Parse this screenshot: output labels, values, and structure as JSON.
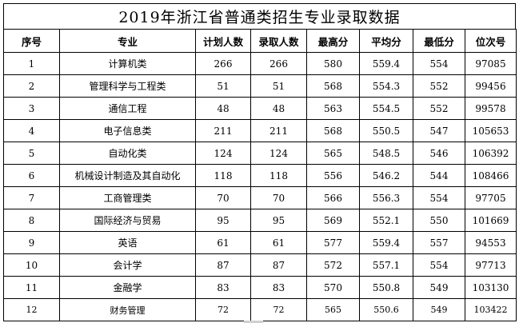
{
  "title": "2019年浙江省普通类招生专业录取数据",
  "columns": [
    "序号",
    "专业",
    "计划人数",
    "录取人数",
    "最高分",
    "平均分",
    "最低分",
    "位次号"
  ],
  "rows": [
    [
      "1",
      "计算机类",
      "266",
      "266",
      "580",
      "559.4",
      "554",
      "97085"
    ],
    [
      "2",
      "管理科学与工程类",
      "51",
      "51",
      "568",
      "554.3",
      "552",
      "99456"
    ],
    [
      "3",
      "通信工程",
      "48",
      "48",
      "563",
      "554.5",
      "552",
      "99578"
    ],
    [
      "4",
      "电子信息类",
      "211",
      "211",
      "568",
      "550.5",
      "547",
      "105653"
    ],
    [
      "5",
      "自动化类",
      "124",
      "124",
      "565",
      "548.5",
      "546",
      "106392"
    ],
    [
      "6",
      "机械设计制造及其自动化",
      "118",
      "118",
      "556",
      "546.2",
      "544",
      "108466"
    ],
    [
      "7",
      "工商管理类",
      "70",
      "70",
      "566",
      "556.3",
      "554",
      "97705"
    ],
    [
      "8",
      "国际经济与贸易",
      "95",
      "95",
      "569",
      "552.1",
      "550",
      "101669"
    ],
    [
      "9",
      "英语",
      "61",
      "61",
      "577",
      "559.4",
      "557",
      "94553"
    ],
    [
      "10",
      "会计学",
      "87",
      "87",
      "572",
      "557.1",
      "554",
      "97713"
    ],
    [
      "11",
      "金融学",
      "83",
      "83",
      "570",
      "550.8",
      "549",
      "103130"
    ],
    [
      "12",
      "财务管理",
      "72",
      "72",
      "565",
      "550.6",
      "549",
      "103422"
    ]
  ]
}
